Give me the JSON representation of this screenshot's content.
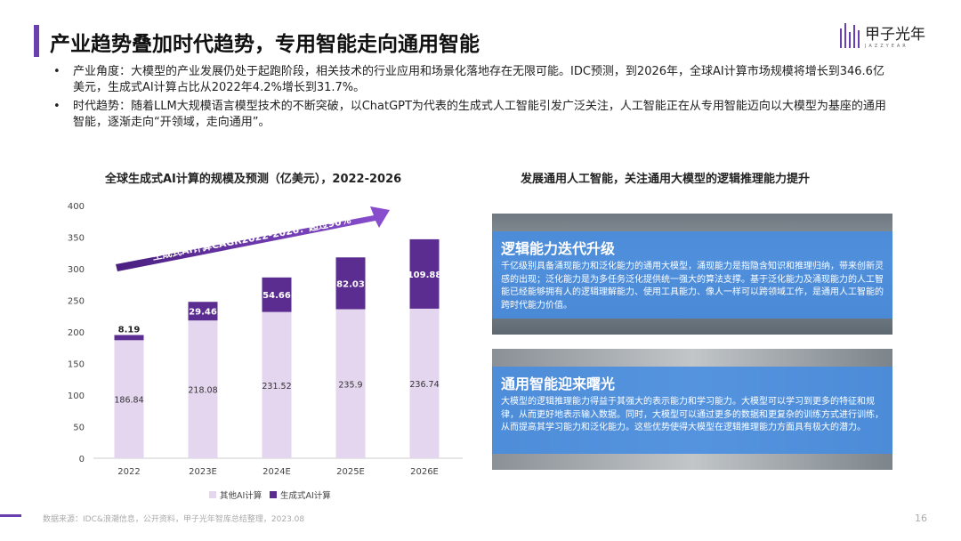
{
  "title": "产业趋势叠加时代趋势，专用智能走向通用智能",
  "logo": {
    "name": "甲子光年",
    "sub": "JAZZYEAR"
  },
  "bullets": [
    "产业角度：大模型的产业发展仍处于起跑阶段，相关技术的行业应用和场景化落地存在无限可能。IDC预测，到2026年，全球AI计算市场规模将增长到346.6亿美元，生成式AI计算占比从2022年4.2%增长到31.7%。",
    "时代趋势：随着LLM大规模语言模型技术的不断突破，以ChatGPT为代表的生成式人工智能引发广泛关注，人工智能正在从专用智能迈向以大模型为基座的通用智能，逐渐走向“开领域，走向通用”。"
  ],
  "right_title": "发展通用人工智能，关注通用大模型的逻辑推理能力提升",
  "panels": [
    {
      "title": "逻辑能力迭代升级",
      "text": "千亿级别具备涌现能力和泛化能力的通用大模型，涌现能力是指隐含知识和推理归纳，带来创新灵感的出现；泛化能力是为多任务泛化提供统一强大的算法支撑。基于泛化能力及涌现能力的人工智能已经能够拥有人的逻辑理解能力、使用工具能力、像人一样可以跨领域工作，是通用人工智能的跨时代能力价值。"
    },
    {
      "title": "通用智能迎来曙光",
      "text": "大模型的逻辑推理能力得益于其强大的表示能力和学习能力。大模型可以学习到更多的特征和规律，从而更好地表示输入数据。同时，大模型可以通过更多的数据和更复杂的训练方式进行训练，从而提高其学习能力和泛化能力。这些优势使得大模型在逻辑推理能力方面具有极大的潜力。"
    }
  ],
  "footer": {
    "source": "数据来源：IDC&浪潮信息，公开资料，甲子光年智库总结整理，2023.08",
    "page": "16"
  },
  "colors": {
    "other": "#e4d6ef",
    "gen": "#5c2d91",
    "accent": "#6a3fb0"
  },
  "chart_data": {
    "type": "bar",
    "stacked": true,
    "title": "全球生成式AI计算的规模及预测（亿美元），2022-2026",
    "categories": [
      "2022",
      "2023E",
      "2024E",
      "2025E",
      "2026E"
    ],
    "series": [
      {
        "name": "其他AI计算",
        "values": [
          186.84,
          218.08,
          231.52,
          235.9,
          236.74
        ]
      },
      {
        "name": "生成式AI计算",
        "values": [
          8.19,
          29.46,
          54.66,
          82.03,
          109.88
        ]
      }
    ],
    "labels": {
      "other": [
        "186.84",
        "218.08",
        "231.52",
        "235.9",
        "236.74"
      ],
      "gen": [
        "8.19",
        "29.46",
        "54.66",
        "82.03",
        "109.88"
      ]
    },
    "yticks": [
      "0",
      "50",
      "100",
      "150",
      "200",
      "250",
      "300",
      "350",
      "400"
    ],
    "ylim": [
      0,
      400
    ],
    "annotation": "生成式AI计算CAGR2022-2026：超过90%",
    "legend_position": "bottom"
  }
}
